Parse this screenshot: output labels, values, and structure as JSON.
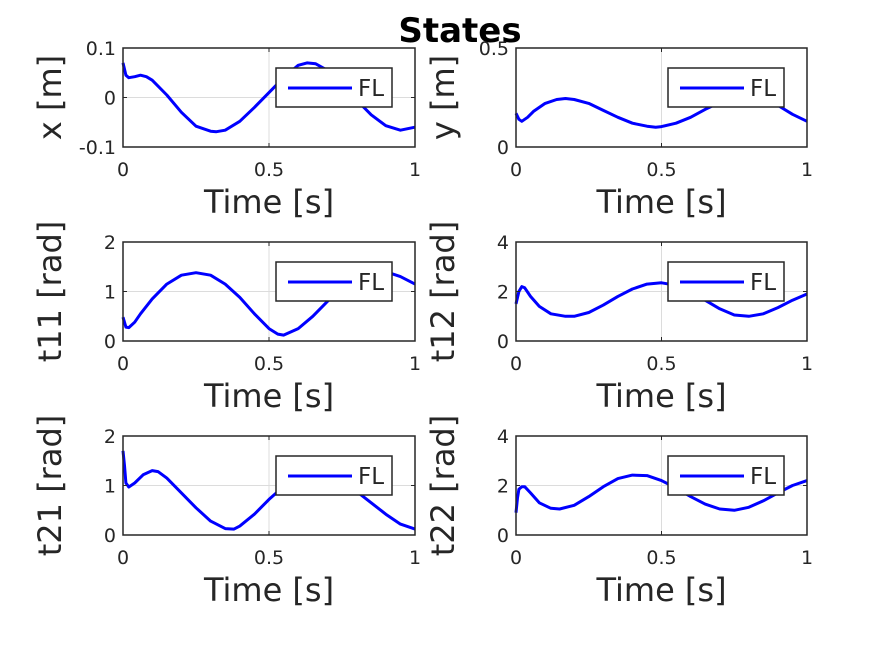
{
  "figure": {
    "title": "States"
  },
  "chart_data": [
    {
      "type": "line",
      "ylabel": "x [m]",
      "xlabel": "Time [s]",
      "xlim": [
        0,
        1
      ],
      "ylim": [
        -0.1,
        0.1
      ],
      "xticks": [
        "0",
        "0.5",
        "1"
      ],
      "yticks": [
        "-0.1",
        "0",
        "0.1"
      ],
      "ytick_values": [
        -0.1,
        0,
        0.1
      ],
      "grid": true,
      "legend": "top-right",
      "series": [
        {
          "name": "FL",
          "color": "#0000ff",
          "x": [
            0,
            0.01,
            0.02,
            0.04,
            0.06,
            0.08,
            0.1,
            0.15,
            0.2,
            0.25,
            0.3,
            0.32,
            0.35,
            0.4,
            0.45,
            0.5,
            0.55,
            0.6,
            0.63,
            0.66,
            0.7,
            0.75,
            0.8,
            0.85,
            0.9,
            0.95,
            1.0
          ],
          "y": [
            0.07,
            0.045,
            0.04,
            0.042,
            0.045,
            0.042,
            0.035,
            0.005,
            -0.03,
            -0.058,
            -0.068,
            -0.069,
            -0.066,
            -0.048,
            -0.02,
            0.01,
            0.04,
            0.065,
            0.07,
            0.068,
            0.055,
            0.025,
            -0.005,
            -0.035,
            -0.057,
            -0.066,
            -0.06
          ]
        }
      ]
    },
    {
      "type": "line",
      "ylabel": "y [m]",
      "xlabel": "Time [s]",
      "xlim": [
        0,
        1
      ],
      "ylim": [
        0,
        0.5
      ],
      "xticks": [
        "0",
        "0.5",
        "1"
      ],
      "yticks": [
        "0",
        "0.5"
      ],
      "ytick_values": [
        0,
        0.5
      ],
      "grid": true,
      "legend": "top-right",
      "series": [
        {
          "name": "FL",
          "color": "#0000ff",
          "x": [
            0,
            0.01,
            0.02,
            0.04,
            0.06,
            0.1,
            0.14,
            0.17,
            0.2,
            0.25,
            0.3,
            0.35,
            0.4,
            0.45,
            0.48,
            0.5,
            0.55,
            0.6,
            0.65,
            0.7,
            0.75,
            0.8,
            0.85,
            0.9,
            0.95,
            1.0
          ],
          "y": [
            0.17,
            0.14,
            0.13,
            0.15,
            0.18,
            0.22,
            0.24,
            0.245,
            0.24,
            0.22,
            0.185,
            0.15,
            0.12,
            0.105,
            0.1,
            0.103,
            0.12,
            0.15,
            0.19,
            0.225,
            0.25,
            0.26,
            0.245,
            0.21,
            0.165,
            0.13
          ]
        }
      ]
    },
    {
      "type": "line",
      "ylabel": "t11 [rad]",
      "xlabel": "Time [s]",
      "xlim": [
        0,
        1
      ],
      "ylim": [
        0,
        2
      ],
      "xticks": [
        "0",
        "0.5",
        "1"
      ],
      "yticks": [
        "0",
        "1",
        "2"
      ],
      "ytick_values": [
        0,
        1,
        2
      ],
      "grid": true,
      "legend": "top-right",
      "series": [
        {
          "name": "FL",
          "color": "#0000ff",
          "x": [
            0,
            0.01,
            0.02,
            0.04,
            0.06,
            0.1,
            0.15,
            0.2,
            0.25,
            0.3,
            0.35,
            0.4,
            0.45,
            0.5,
            0.53,
            0.55,
            0.6,
            0.65,
            0.7,
            0.75,
            0.8,
            0.85,
            0.9,
            0.95,
            1.0
          ],
          "y": [
            0.48,
            0.28,
            0.27,
            0.38,
            0.55,
            0.85,
            1.15,
            1.33,
            1.38,
            1.33,
            1.15,
            0.88,
            0.55,
            0.25,
            0.14,
            0.12,
            0.25,
            0.5,
            0.8,
            1.08,
            1.28,
            1.4,
            1.4,
            1.3,
            1.15
          ]
        }
      ]
    },
    {
      "type": "line",
      "ylabel": "t12 [rad]",
      "xlabel": "Time [s]",
      "xlim": [
        0,
        1
      ],
      "ylim": [
        0,
        4
      ],
      "xticks": [
        "0",
        "0.5",
        "1"
      ],
      "yticks": [
        "0",
        "2",
        "4"
      ],
      "ytick_values": [
        0,
        2,
        4
      ],
      "grid": true,
      "legend": "top-right",
      "series": [
        {
          "name": "FL",
          "color": "#0000ff",
          "x": [
            0,
            0.01,
            0.02,
            0.03,
            0.05,
            0.08,
            0.12,
            0.17,
            0.2,
            0.25,
            0.3,
            0.35,
            0.4,
            0.45,
            0.5,
            0.55,
            0.6,
            0.65,
            0.7,
            0.75,
            0.8,
            0.85,
            0.9,
            0.95,
            1.0
          ],
          "y": [
            1.5,
            2.0,
            2.2,
            2.15,
            1.8,
            1.4,
            1.1,
            1.0,
            1.0,
            1.15,
            1.45,
            1.8,
            2.1,
            2.3,
            2.35,
            2.25,
            2.0,
            1.65,
            1.3,
            1.05,
            1.0,
            1.1,
            1.35,
            1.65,
            1.9
          ]
        }
      ]
    },
    {
      "type": "line",
      "ylabel": "t21 [rad]",
      "xlabel": "Time [s]",
      "xlim": [
        0,
        1
      ],
      "ylim": [
        0,
        2
      ],
      "xticks": [
        "0",
        "0.5",
        "1"
      ],
      "yticks": [
        "0",
        "1",
        "2"
      ],
      "ytick_values": [
        0,
        1,
        2
      ],
      "grid": true,
      "legend": "top-right",
      "series": [
        {
          "name": "FL",
          "color": "#0000ff",
          "x": [
            0,
            0.005,
            0.01,
            0.02,
            0.04,
            0.07,
            0.1,
            0.12,
            0.15,
            0.2,
            0.25,
            0.3,
            0.35,
            0.38,
            0.4,
            0.45,
            0.5,
            0.55,
            0.6,
            0.65,
            0.7,
            0.75,
            0.8,
            0.85,
            0.9,
            0.95,
            1.0
          ],
          "y": [
            1.7,
            1.4,
            1.05,
            0.97,
            1.05,
            1.22,
            1.3,
            1.28,
            1.15,
            0.85,
            0.55,
            0.28,
            0.13,
            0.12,
            0.18,
            0.42,
            0.72,
            0.98,
            1.12,
            1.18,
            1.15,
            1.05,
            0.88,
            0.65,
            0.42,
            0.22,
            0.12
          ]
        }
      ]
    },
    {
      "type": "line",
      "ylabel": "t22 [rad]",
      "xlabel": "Time [s]",
      "xlim": [
        0,
        1
      ],
      "ylim": [
        0,
        4
      ],
      "xticks": [
        "0",
        "0.5",
        "1"
      ],
      "yticks": [
        "0",
        "2",
        "4"
      ],
      "ytick_values": [
        0,
        2,
        4
      ],
      "grid": true,
      "legend": "top-right",
      "series": [
        {
          "name": "FL",
          "color": "#0000ff",
          "x": [
            0,
            0.005,
            0.01,
            0.02,
            0.03,
            0.05,
            0.08,
            0.12,
            0.15,
            0.2,
            0.25,
            0.3,
            0.35,
            0.4,
            0.45,
            0.5,
            0.55,
            0.6,
            0.65,
            0.7,
            0.75,
            0.8,
            0.85,
            0.9,
            0.95,
            1.0
          ],
          "y": [
            0.9,
            1.5,
            1.85,
            1.95,
            1.95,
            1.7,
            1.3,
            1.08,
            1.05,
            1.2,
            1.55,
            1.95,
            2.28,
            2.42,
            2.4,
            2.2,
            1.9,
            1.55,
            1.25,
            1.05,
            1.0,
            1.12,
            1.38,
            1.7,
            2.0,
            2.2
          ]
        }
      ]
    }
  ]
}
